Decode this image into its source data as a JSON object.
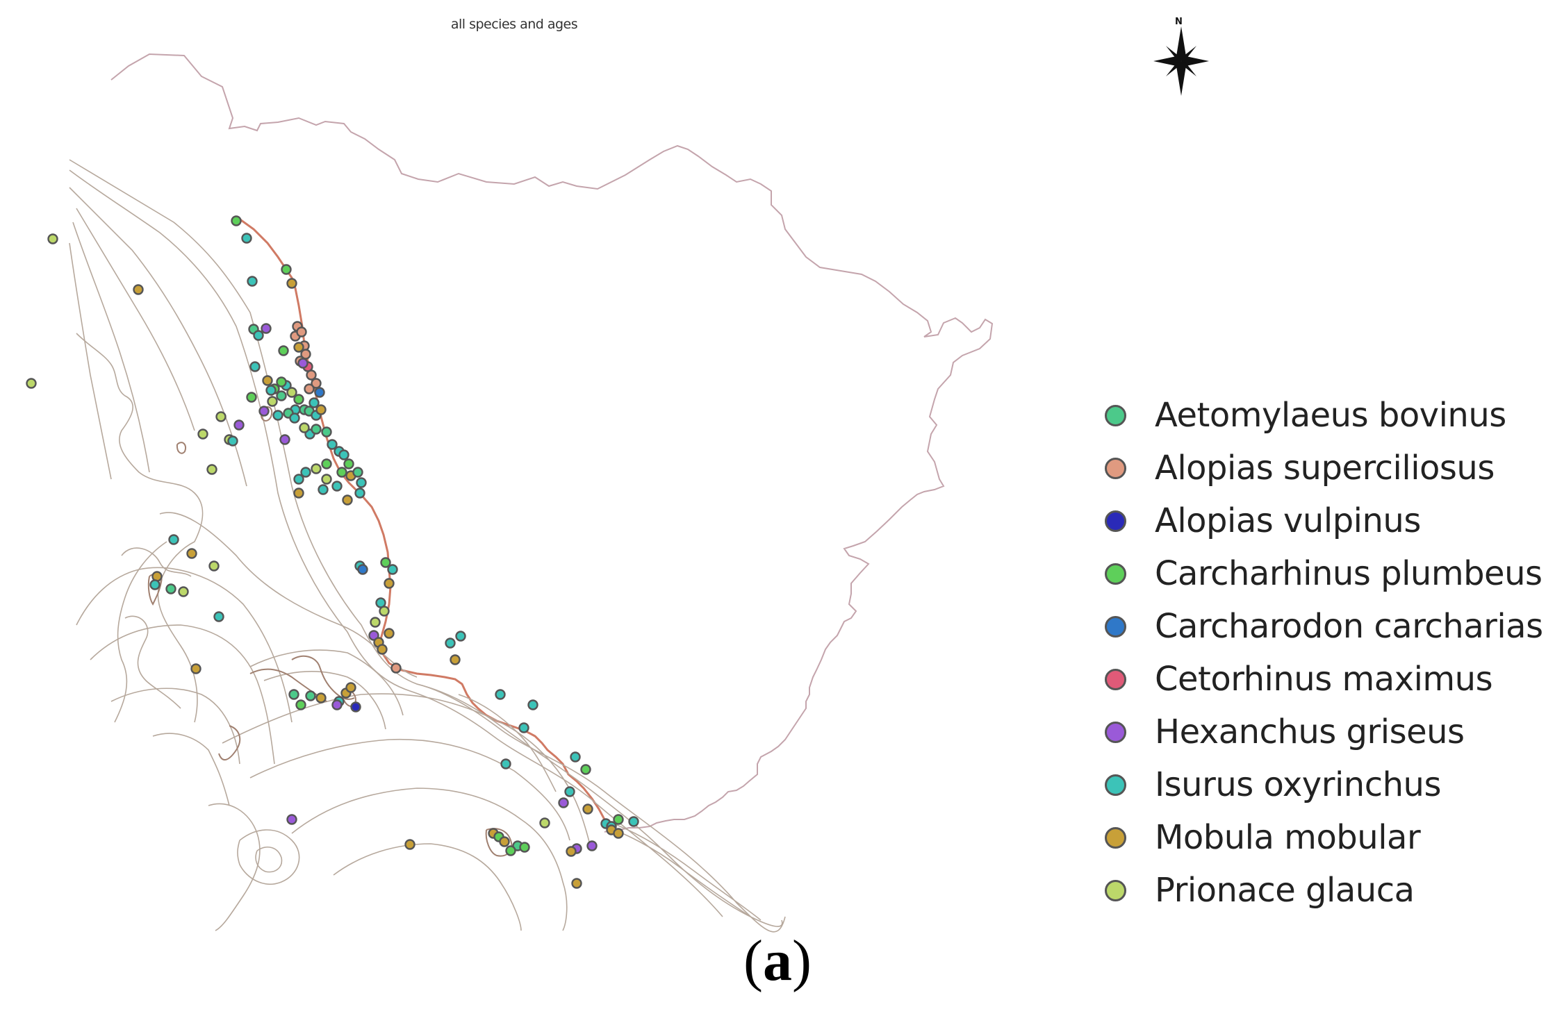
{
  "map": {
    "title": "all species and ages",
    "north_label": "N",
    "caption_letter": "a",
    "caption_open": "(",
    "caption_close": ")"
  },
  "legend": [
    {
      "id": "aetomylaeus",
      "label": "Aetomylaeus bovinus",
      "color": "#4cc98a"
    },
    {
      "id": "alopias_sup",
      "label": "Alopias superciliosus",
      "color": "#e09a80"
    },
    {
      "id": "alopias_vul",
      "label": "Alopias vulpinus",
      "color": "#2a2ab8"
    },
    {
      "id": "carcharhinus",
      "label": "Carcharhinus plumbeus",
      "color": "#5ecf5a"
    },
    {
      "id": "carcharodon",
      "label": "Carcharodon carcharias",
      "color": "#2f78c8"
    },
    {
      "id": "cetorhinus",
      "label": "Cetorhinus maximus",
      "color": "#e05a78"
    },
    {
      "id": "hexanchus",
      "label": "Hexanchus griseus",
      "color": "#9a5ad8"
    },
    {
      "id": "isurus",
      "label": "Isurus oxyrinchus",
      "color": "#3cc3b8"
    },
    {
      "id": "mobula",
      "label": "Mobula mobular",
      "color": "#c8a038"
    },
    {
      "id": "prionace",
      "label": "Prionace glauca",
      "color": "#bcd86a"
    }
  ]
}
